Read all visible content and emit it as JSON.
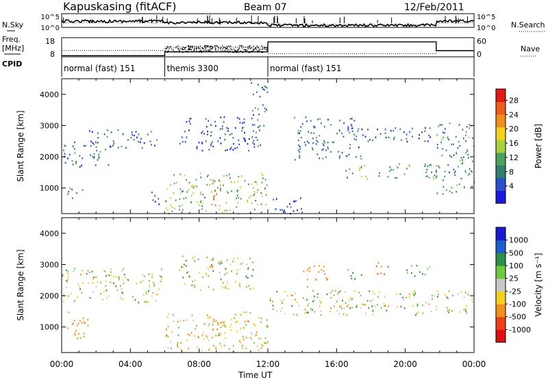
{
  "header": {
    "station": "Kapuskasing (fitACF)",
    "beam": "Beam 07",
    "date": "12/Feb/2011"
  },
  "top_panels": {
    "left_labels": {
      "nsky": "N.Sky",
      "freq_line1": "Freq.",
      "freq_line2": "[MHz]",
      "cpid": "CPID"
    },
    "right_labels": {
      "nsearch": "N.Search",
      "nave": "Nave"
    },
    "noise_ticks_left": [
      "10^5",
      "10^0"
    ],
    "noise_ticks_right": [
      "10^5",
      "10^0"
    ],
    "freq_ticks": [
      "18",
      "8"
    ],
    "nave_ticks": [
      "60",
      "0"
    ],
    "cpid_segments": [
      {
        "label": "normal (fast) 151",
        "start_hour": 0,
        "end_hour": 6
      },
      {
        "label": "themis 3300",
        "start_hour": 6,
        "end_hour": 12
      },
      {
        "label": "normal (fast) 151",
        "start_hour": 12,
        "end_hour": 24
      }
    ],
    "freq_series": [
      {
        "start_hour": 0,
        "end_hour": 6,
        "value": 8.6
      },
      {
        "start_hour": 6,
        "end_hour": 12,
        "value": 10.6
      },
      {
        "start_hour": 12,
        "end_hour": 21.8,
        "value": 15.8
      },
      {
        "start_hour": 21.8,
        "end_hour": 24,
        "value": 11.2
      }
    ],
    "nave_series": [
      {
        "start_hour": 0,
        "end_hour": 6,
        "value": 20
      },
      {
        "start_hour": 6,
        "end_hour": 12,
        "value": 30
      },
      {
        "start_hour": 12,
        "end_hour": 21.8,
        "value": 10
      },
      {
        "start_hour": 21.8,
        "end_hour": 24,
        "value": 20
      }
    ]
  },
  "chart_data": [
    {
      "type": "heatmap",
      "name": "power",
      "ylabel": "Slant Range [km]",
      "colorbar_label": "Power [dB]",
      "ylim": [
        180,
        4500
      ],
      "yticks": [
        1000,
        2000,
        3000,
        4000
      ],
      "xlim_hours": [
        0,
        24
      ],
      "colorbar_ticks": [
        "4",
        "8",
        "12",
        "16",
        "20",
        "24",
        "28"
      ],
      "colors": [
        "#1a1adc",
        "#2b4fc8",
        "#2f7f6a",
        "#4ba05a",
        "#a8d040",
        "#f0d020",
        "#f09020",
        "#e8601c",
        "#dd1a14"
      ],
      "regions": [
        {
          "t0": 0.0,
          "t1": 2.8,
          "r0": 1700,
          "r1": 2500,
          "level": 8
        },
        {
          "t0": 1.5,
          "t1": 5.5,
          "r0": 2300,
          "r1": 2900,
          "level": 7
        },
        {
          "t0": 0.2,
          "t1": 1.2,
          "r0": 700,
          "r1": 1100,
          "level": 8
        },
        {
          "t0": 5.2,
          "t1": 5.7,
          "r0": 200,
          "r1": 900,
          "level": 5
        },
        {
          "t0": 6.0,
          "t1": 12.0,
          "r0": 200,
          "r1": 1500,
          "level": 14
        },
        {
          "t0": 8.7,
          "t1": 9.3,
          "r0": 300,
          "r1": 1300,
          "level": 24
        },
        {
          "t0": 6.8,
          "t1": 11.2,
          "r0": 2200,
          "r1": 3300,
          "level": 6
        },
        {
          "t0": 11.0,
          "t1": 12.0,
          "r0": 2300,
          "r1": 4400,
          "level": 8
        },
        {
          "t0": 12.0,
          "t1": 14.0,
          "r0": 200,
          "r1": 700,
          "level": 4
        },
        {
          "t0": 13.5,
          "t1": 17.5,
          "r0": 1900,
          "r1": 3300,
          "level": 8
        },
        {
          "t0": 16.5,
          "t1": 21.8,
          "r0": 1300,
          "r1": 1800,
          "level": 12
        },
        {
          "t0": 21.8,
          "t1": 24.0,
          "r0": 800,
          "r1": 3100,
          "level": 10
        },
        {
          "t0": 17.5,
          "t1": 21.5,
          "r0": 2500,
          "r1": 3000,
          "level": 6
        }
      ]
    },
    {
      "type": "heatmap",
      "name": "velocity",
      "ylabel": "Slant Range [km]",
      "colorbar_label": "Velocity [m s⁻¹]",
      "ylim": [
        180,
        4500
      ],
      "yticks": [
        1000,
        2000,
        3000,
        4000
      ],
      "xlim_hours": [
        0,
        24
      ],
      "colorbar_ticks": [
        "1000",
        "500",
        "100",
        "25",
        "-25",
        "-100",
        "-500",
        "-1000"
      ],
      "colors": [
        "#1a1acd",
        "#1e5ec8",
        "#2f8f4a",
        "#6ec840",
        "#c8c8c4",
        "#f0d020",
        "#f09020",
        "#e84018",
        "#dd1010"
      ],
      "regions": [
        {
          "t0": 0.0,
          "t1": 5.8,
          "r0": 1800,
          "r1": 2900,
          "level": 0
        },
        {
          "t0": 0.3,
          "t1": 1.5,
          "r0": 500,
          "r1": 1500,
          "level": -300
        },
        {
          "t0": 6.0,
          "t1": 12.0,
          "r0": 200,
          "r1": 1500,
          "level": -50
        },
        {
          "t0": 8.7,
          "t1": 9.3,
          "r0": 300,
          "r1": 1300,
          "level": -200
        },
        {
          "t0": 6.8,
          "t1": 11.2,
          "r0": 2200,
          "r1": 3300,
          "level": 0
        },
        {
          "t0": 12.0,
          "t1": 24.0,
          "r0": 1400,
          "r1": 2200,
          "level": 0
        },
        {
          "t0": 14.0,
          "t1": 15.5,
          "r0": 2300,
          "r1": 3000,
          "level": -300
        },
        {
          "t0": 18.0,
          "t1": 19.0,
          "r0": 2700,
          "r1": 3100,
          "level": -600
        },
        {
          "t0": 20.0,
          "t1": 21.5,
          "r0": 2600,
          "r1": 3000,
          "level": 150
        },
        {
          "t0": 16.5,
          "t1": 17.5,
          "r0": 2500,
          "r1": 2900,
          "level": 150
        }
      ]
    }
  ],
  "time_axis": {
    "ticks": [
      "00:00",
      "04:00",
      "08:00",
      "12:00",
      "16:00",
      "20:00",
      "00:00"
    ],
    "label": "Time UT"
  }
}
